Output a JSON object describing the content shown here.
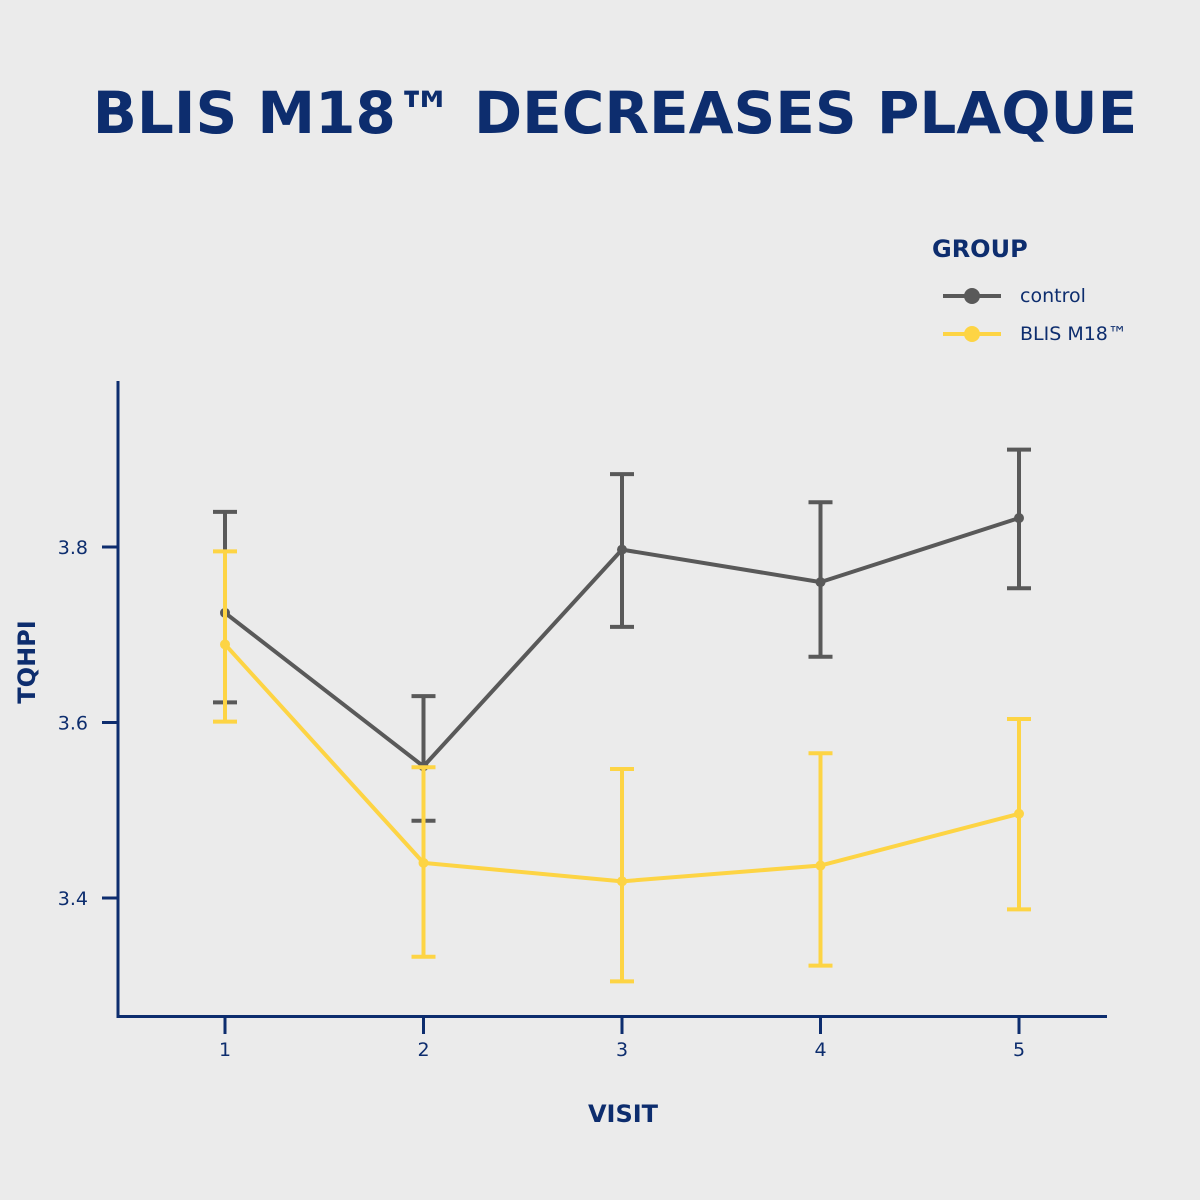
{
  "chart_data": {
    "type": "line",
    "title": "BLIS M18™ DECREASES PLAQUE",
    "xlabel": "VISIT",
    "ylabel": "TQHPI",
    "x": [
      1,
      2,
      3,
      4,
      5
    ],
    "x_tick_labels": [
      "1",
      "2",
      "3",
      "4",
      "5"
    ],
    "y_ticks": [
      3.4,
      3.6,
      3.8
    ],
    "y_tick_labels": [
      "3.4",
      "3.6",
      "3.8"
    ],
    "ylim": [
      3.27,
      3.99
    ],
    "grid": false,
    "error_bars": true,
    "legend": {
      "title": "GROUP",
      "position": "top-right"
    },
    "series": [
      {
        "name": "control",
        "color": "#595959",
        "values": [
          3.725,
          3.55,
          3.797,
          3.76,
          3.833
        ],
        "err_low": [
          3.623,
          3.488,
          3.709,
          3.675,
          3.753
        ],
        "err_high": [
          3.84,
          3.63,
          3.883,
          3.851,
          3.911
        ]
      },
      {
        "name": "BLIS M18™",
        "color": "#fdd444",
        "values": [
          3.689,
          3.44,
          3.419,
          3.437,
          3.496
        ],
        "err_low": [
          3.601,
          3.333,
          3.305,
          3.323,
          3.387
        ],
        "err_high": [
          3.795,
          3.549,
          3.547,
          3.565,
          3.604
        ]
      }
    ]
  }
}
